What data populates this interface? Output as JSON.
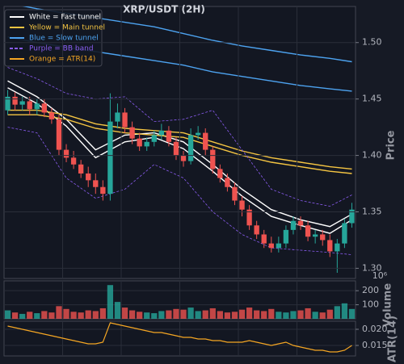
{
  "chart_data": {
    "type": "candlestick",
    "title": "XRP/USDT (2H)",
    "ylabel": "Price",
    "grid": true,
    "up_color": "#26a69a",
    "down_color": "#ef5350",
    "ylim": [
      1.291,
      1.532
    ],
    "yticks": [
      {
        "value": 1.3,
        "label": "1.30"
      },
      1.35,
      {
        "value": 1.4,
        "label": "1.40"
      },
      1.45,
      {
        "value": 1.5,
        "label": "1.50"
      }
    ],
    "open": [
      1.44,
      1.452,
      1.445,
      1.448,
      1.441,
      1.446,
      1.438,
      1.432,
      1.405,
      1.398,
      1.392,
      1.384,
      1.378,
      1.372,
      1.366,
      1.43,
      1.438,
      1.425,
      1.415,
      1.408,
      1.412,
      1.418,
      1.422,
      1.412,
      1.4,
      1.395,
      1.418,
      1.42,
      1.405,
      1.388,
      1.38,
      1.372,
      1.36,
      1.352,
      1.338,
      1.33,
      1.322,
      1.318,
      1.322,
      1.334,
      1.342,
      1.338,
      1.328,
      1.33,
      1.325,
      1.315,
      1.322,
      1.34
    ],
    "high": [
      1.458,
      1.456,
      1.452,
      1.452,
      1.45,
      1.45,
      1.442,
      1.436,
      1.41,
      1.404,
      1.396,
      1.39,
      1.384,
      1.378,
      1.455,
      1.446,
      1.442,
      1.43,
      1.42,
      1.416,
      1.422,
      1.428,
      1.426,
      1.416,
      1.404,
      1.424,
      1.426,
      1.424,
      1.408,
      1.392,
      1.384,
      1.376,
      1.364,
      1.356,
      1.342,
      1.334,
      1.328,
      1.328,
      1.338,
      1.346,
      1.346,
      1.342,
      1.334,
      1.334,
      1.33,
      1.326,
      1.344,
      1.358
    ],
    "low": [
      1.436,
      1.44,
      1.44,
      1.436,
      1.436,
      1.434,
      1.428,
      1.4,
      1.394,
      1.388,
      1.38,
      1.372,
      1.366,
      1.36,
      1.36,
      1.424,
      1.42,
      1.41,
      1.404,
      1.404,
      1.408,
      1.414,
      1.408,
      1.396,
      1.39,
      1.392,
      1.414,
      1.4,
      1.384,
      1.376,
      1.368,
      1.356,
      1.346,
      1.334,
      1.326,
      1.318,
      1.314,
      1.314,
      1.318,
      1.33,
      1.334,
      1.324,
      1.322,
      1.32,
      1.31,
      1.296,
      1.318,
      1.336
    ],
    "close": [
      1.452,
      1.445,
      1.448,
      1.441,
      1.446,
      1.438,
      1.432,
      1.405,
      1.398,
      1.392,
      1.384,
      1.378,
      1.372,
      1.366,
      1.43,
      1.438,
      1.425,
      1.415,
      1.408,
      1.412,
      1.418,
      1.422,
      1.412,
      1.4,
      1.395,
      1.418,
      1.42,
      1.405,
      1.388,
      1.38,
      1.372,
      1.36,
      1.352,
      1.338,
      1.33,
      1.322,
      1.318,
      1.322,
      1.334,
      1.342,
      1.338,
      1.328,
      1.33,
      1.325,
      1.315,
      1.322,
      1.34,
      1.352
    ],
    "line_x": [
      0,
      4,
      8,
      12,
      16,
      20,
      24,
      28,
      32,
      36,
      40,
      44,
      47
    ],
    "series": [
      {
        "name": "White = Fast tunnel",
        "color": "#ffffff",
        "upper": [
          1.466,
          1.452,
          1.432,
          1.405,
          1.418,
          1.42,
          1.412,
          1.392,
          1.37,
          1.352,
          1.343,
          1.337,
          1.348
        ],
        "lower": [
          1.46,
          1.446,
          1.426,
          1.398,
          1.412,
          1.416,
          1.406,
          1.386,
          1.364,
          1.346,
          1.338,
          1.331,
          1.343
        ]
      },
      {
        "name": "Yellow = Main tunnel",
        "color": "#f5c542",
        "upper": [
          1.44,
          1.44,
          1.436,
          1.428,
          1.424,
          1.422,
          1.42,
          1.412,
          1.404,
          1.398,
          1.394,
          1.39,
          1.388
        ],
        "lower": [
          1.436,
          1.436,
          1.432,
          1.424,
          1.42,
          1.418,
          1.416,
          1.408,
          1.4,
          1.394,
          1.39,
          1.386,
          1.384
        ]
      },
      {
        "name": "Blue = Slow tunnel",
        "color": "#4da3f0",
        "upper": [
          1.535,
          1.53,
          1.526,
          1.522,
          1.518,
          1.514,
          1.508,
          1.502,
          1.497,
          1.493,
          1.489,
          1.486,
          1.483
        ],
        "lower": [
          1.505,
          1.5,
          1.496,
          1.492,
          1.488,
          1.484,
          1.48,
          1.474,
          1.47,
          1.466,
          1.462,
          1.459,
          1.457
        ]
      },
      {
        "name": "Purple = BB band",
        "color": "#8a5cf0",
        "dashed": true,
        "upper": [
          1.478,
          1.468,
          1.455,
          1.45,
          1.452,
          1.43,
          1.432,
          1.44,
          1.405,
          1.37,
          1.36,
          1.355,
          1.365
        ],
        "lower": [
          1.425,
          1.42,
          1.38,
          1.362,
          1.37,
          1.392,
          1.38,
          1.35,
          1.33,
          1.318,
          1.316,
          1.314,
          1.312
        ]
      },
      {
        "name": "Orange = ATR(14)",
        "color": "#f5a623",
        "axis": "atr",
        "values": [
          0.021,
          0.0205,
          0.02,
          0.0195,
          0.019,
          0.0185,
          0.018,
          0.0175,
          0.017,
          0.0165,
          0.016,
          0.0155,
          0.0155,
          0.016,
          0.022,
          0.0215,
          0.021,
          0.0205,
          0.02,
          0.0195,
          0.019,
          0.019,
          0.0185,
          0.018,
          0.0175,
          0.0175,
          0.017,
          0.017,
          0.0165,
          0.0165,
          0.016,
          0.016,
          0.016,
          0.0165,
          0.016,
          0.0155,
          0.015,
          0.0155,
          0.016,
          0.015,
          0.0145,
          0.014,
          0.0135,
          0.0135,
          0.013,
          0.013,
          0.0135,
          0.015
        ]
      }
    ],
    "volume": {
      "ylabel": "Volume",
      "offset_label": "10⁶",
      "ylim": [
        0,
        270
      ],
      "yticks": [
        100,
        200
      ],
      "values": [
        60,
        45,
        35,
        50,
        40,
        55,
        45,
        90,
        70,
        50,
        45,
        60,
        55,
        75,
        240,
        120,
        80,
        60,
        50,
        45,
        40,
        55,
        60,
        70,
        65,
        80,
        55,
        60,
        75,
        55,
        45,
        50,
        65,
        80,
        60,
        55,
        70,
        50,
        45,
        55,
        60,
        75,
        50,
        45,
        65,
        90,
        110,
        70
      ]
    },
    "atr": {
      "ylabel": "ATR(14)",
      "ylim": [
        0.01175,
        0.0225
      ],
      "yticks": [
        {
          "value": 0.015,
          "label": "0.015"
        },
        {
          "value": 0.02,
          "label": "0.020"
        }
      ]
    }
  }
}
